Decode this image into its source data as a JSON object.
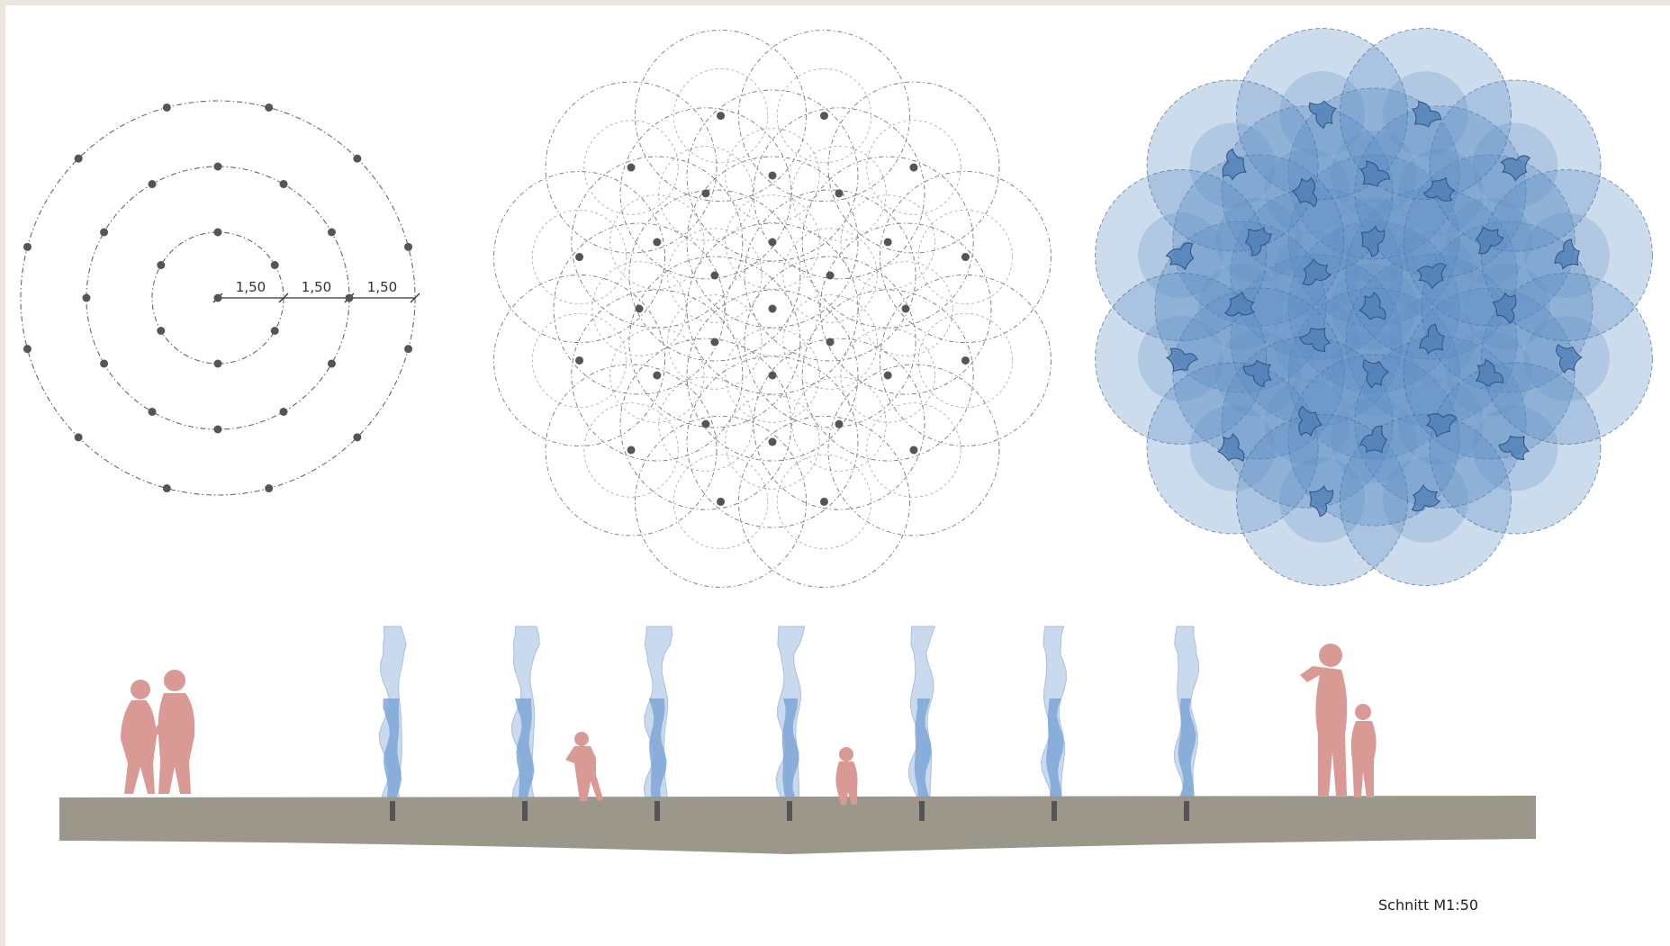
{
  "plan_layout": {
    "spacing_labels": [
      "1,50",
      "1,50",
      "1,50"
    ],
    "rings": [
      {
        "nozzle_count": 1,
        "start_angle_deg": 0
      },
      {
        "nozzle_count": 6,
        "start_angle_deg": 90
      },
      {
        "nozzle_count": 12,
        "start_angle_deg": 90
      },
      {
        "nozzle_count": 12,
        "start_angle_deg": 105
      }
    ]
  },
  "section": {
    "caption": "Schnitt M1:50",
    "fountain_jet_count": 7
  },
  "colors": {
    "background_frame": "#ebe6da",
    "sheet": "#ffffff",
    "spray_fill": "#5b8cc4",
    "spray_stroke": "#3e6490",
    "jet_light": "#c9d9ee",
    "jet_dark": "#7ea6d6",
    "ground": "#9b978b",
    "people": "#d99a95",
    "dots": "#555555",
    "lines": "#666666"
  }
}
